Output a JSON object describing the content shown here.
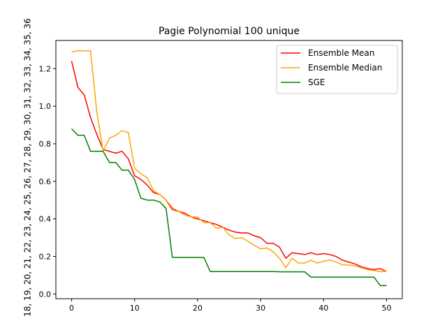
{
  "chart_data": {
    "type": "line",
    "title": "Pagie Polynomial 100 unique",
    "xlabel": "",
    "ylabel": "18, 19, 20, 21, 22, 23, 24, 25, 26, 27, 28, 29, 30, 31, 32, 33, 34, 35, 36",
    "xlim": [
      -2.5,
      52.5
    ],
    "ylim": [
      -0.025,
      1.35
    ],
    "x_ticks": [
      0,
      10,
      20,
      30,
      40,
      50
    ],
    "y_ticks": [
      0.0,
      0.2,
      0.4,
      0.6,
      0.8,
      1.0,
      1.2
    ],
    "x_tick_labels": [
      "0",
      "10",
      "20",
      "30",
      "40",
      "50"
    ],
    "y_tick_labels": [
      "0.0",
      "0.2",
      "0.4",
      "0.6",
      "0.8",
      "1.0",
      "1.2"
    ],
    "grid": false,
    "legend_position": "upper-right",
    "x": [
      0,
      1,
      2,
      3,
      4,
      5,
      6,
      7,
      8,
      9,
      10,
      11,
      12,
      13,
      14,
      15,
      16,
      17,
      18,
      19,
      20,
      21,
      22,
      23,
      24,
      25,
      26,
      27,
      28,
      29,
      30,
      31,
      32,
      33,
      34,
      35,
      36,
      37,
      38,
      39,
      40,
      41,
      42,
      43,
      44,
      45,
      46,
      47,
      48,
      49,
      50
    ],
    "series": [
      {
        "name": "Ensemble Mean",
        "color": "#ff0000",
        "values": [
          1.24,
          1.1,
          1.06,
          0.94,
          0.85,
          0.77,
          0.76,
          0.75,
          0.76,
          0.72,
          0.63,
          0.61,
          0.58,
          0.54,
          0.53,
          0.5,
          0.45,
          0.44,
          0.43,
          0.41,
          0.4,
          0.39,
          0.38,
          0.37,
          0.355,
          0.34,
          0.33,
          0.325,
          0.325,
          0.31,
          0.3,
          0.27,
          0.27,
          0.25,
          0.19,
          0.22,
          0.215,
          0.21,
          0.22,
          0.21,
          0.215,
          0.21,
          0.2,
          0.18,
          0.17,
          0.16,
          0.145,
          0.135,
          0.13,
          0.135,
          0.12
        ]
      },
      {
        "name": "Ensemble Median",
        "color": "#ffa500",
        "values": [
          1.29,
          1.295,
          1.295,
          1.295,
          0.97,
          0.76,
          0.83,
          0.845,
          0.87,
          0.86,
          0.67,
          0.64,
          0.62,
          0.55,
          0.53,
          0.5,
          0.46,
          0.44,
          0.42,
          0.41,
          0.41,
          0.38,
          0.38,
          0.35,
          0.355,
          0.315,
          0.295,
          0.3,
          0.28,
          0.26,
          0.24,
          0.245,
          0.225,
          0.19,
          0.14,
          0.19,
          0.165,
          0.165,
          0.18,
          0.165,
          0.175,
          0.18,
          0.17,
          0.155,
          0.155,
          0.15,
          0.14,
          0.13,
          0.125,
          0.12,
          0.12
        ]
      },
      {
        "name": "SGE",
        "color": "#008000",
        "values": [
          0.88,
          0.845,
          0.845,
          0.76,
          0.76,
          0.76,
          0.7,
          0.7,
          0.66,
          0.66,
          0.61,
          0.51,
          0.5,
          0.5,
          0.49,
          0.455,
          0.195,
          0.195,
          0.195,
          0.195,
          0.195,
          0.195,
          0.12,
          0.12,
          0.12,
          0.12,
          0.12,
          0.12,
          0.12,
          0.12,
          0.12,
          0.12,
          0.12,
          0.118,
          0.118,
          0.118,
          0.118,
          0.118,
          0.09,
          0.09,
          0.09,
          0.09,
          0.09,
          0.09,
          0.09,
          0.09,
          0.09,
          0.09,
          0.09,
          0.045,
          0.045
        ]
      }
    ]
  }
}
